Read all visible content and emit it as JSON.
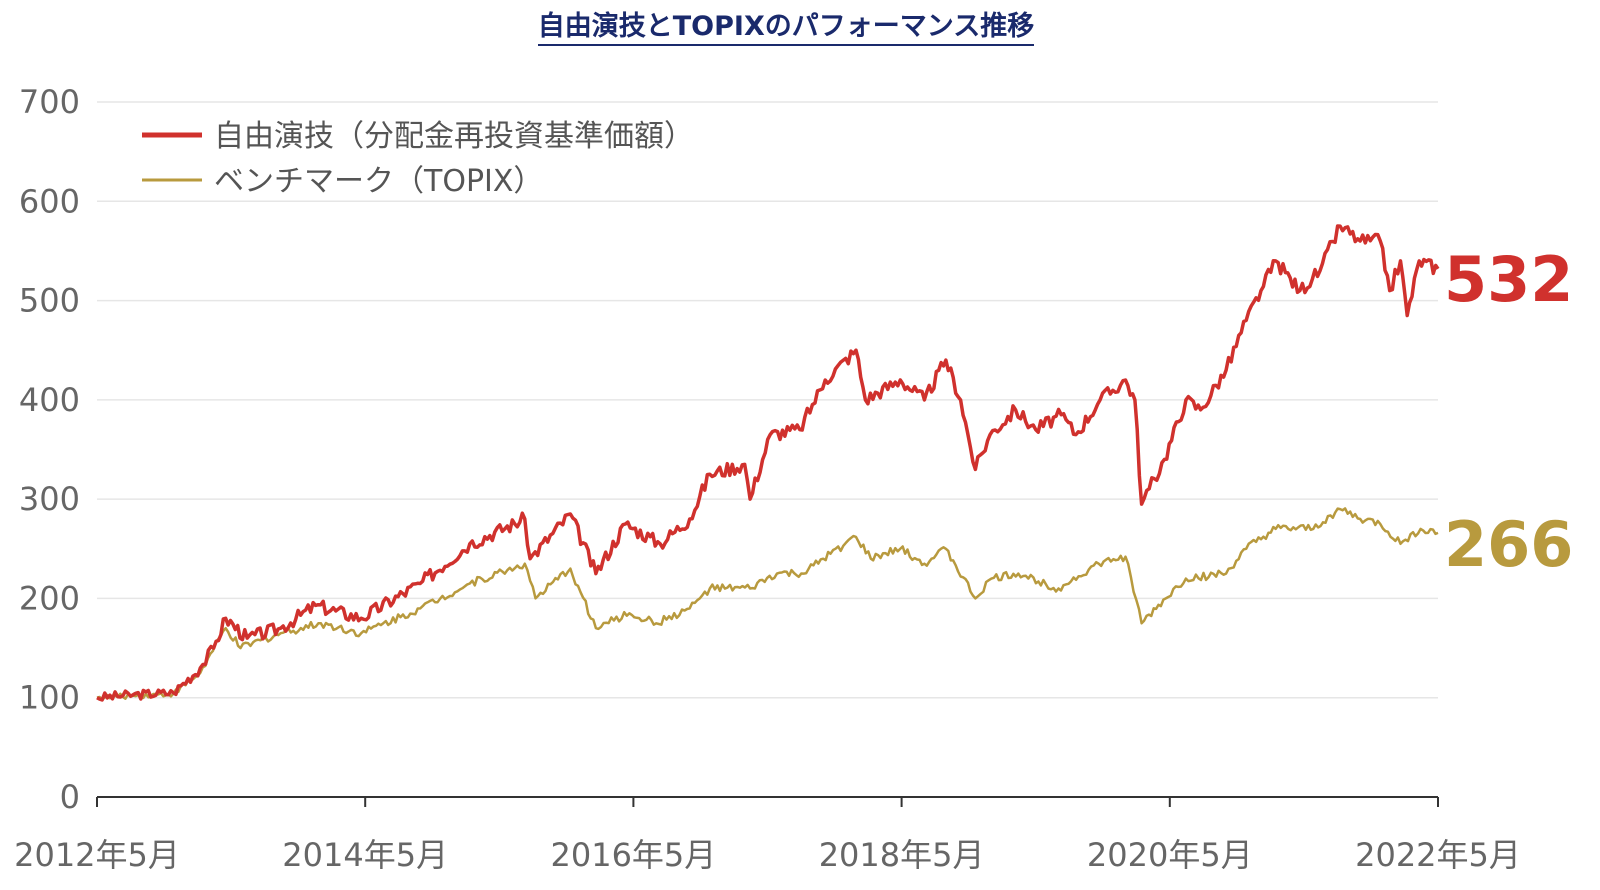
{
  "chart_data": {
    "type": "line",
    "title": "自由演技とTOPIXのパフォーマンス推移",
    "xlabel": "",
    "ylabel": "",
    "ylim": [
      0,
      700
    ],
    "xlim": [
      2012.33,
      2022.33
    ],
    "yticks": [
      "0",
      "100",
      "200",
      "300",
      "400",
      "500",
      "600",
      "700"
    ],
    "ytick_values": [
      0,
      100,
      200,
      300,
      400,
      500,
      600,
      700
    ],
    "xticks": [
      "2012年5月",
      "2014年5月",
      "2016年5月",
      "2018年5月",
      "2020年5月",
      "2022年5月"
    ],
    "xtick_values": [
      2012.33,
      2014.33,
      2016.33,
      2018.33,
      2020.33,
      2022.33
    ],
    "grid": true,
    "legend_position": "top-left",
    "series": [
      {
        "name": "自由演技（分配金再投資基準価額）",
        "color": "#d0312d",
        "end_label": "532",
        "x": [
          2012.33,
          2012.6,
          2012.9,
          2013.1,
          2013.2,
          2013.29,
          2013.45,
          2013.7,
          2013.96,
          2014.3,
          2014.74,
          2015.11,
          2015.52,
          2015.56,
          2015.86,
          2016.05,
          2016.27,
          2016.53,
          2016.75,
          2016.9,
          2017.16,
          2017.2,
          2017.35,
          2017.57,
          2017.76,
          2017.99,
          2018.06,
          2018.32,
          2018.5,
          2018.66,
          2018.77,
          2018.88,
          2018.99,
          2019.18,
          2019.33,
          2019.52,
          2019.63,
          2019.81,
          2020.0,
          2020.07,
          2020.12,
          2020.29,
          2020.45,
          2020.56,
          2020.75,
          2020.9,
          2021.01,
          2021.12,
          2021.3,
          2021.45,
          2021.6,
          2021.75,
          2021.9,
          2021.97,
          2022.05,
          2022.1,
          2022.19,
          2022.33
        ],
        "y": [
          100,
          103,
          105,
          130,
          150,
          180,
          160,
          170,
          193,
          180,
          215,
          255,
          280,
          240,
          285,
          225,
          275,
          255,
          280,
          325,
          335,
          300,
          365,
          370,
          420,
          450,
          400,
          420,
          400,
          440,
          400,
          330,
          365,
          390,
          370,
          385,
          365,
          400,
          420,
          400,
          295,
          340,
          400,
          390,
          430,
          480,
          510,
          540,
          510,
          530,
          575,
          560,
          560,
          510,
          540,
          485,
          540,
          532
        ]
      },
      {
        "name": "ベンチマーク（TOPIX）",
        "color": "#b89a3e",
        "end_label": "266",
        "x": [
          2012.33,
          2012.6,
          2012.9,
          2013.1,
          2013.29,
          2013.4,
          2013.7,
          2014.0,
          2014.3,
          2014.74,
          2015.11,
          2015.52,
          2015.6,
          2015.86,
          2016.05,
          2016.3,
          2016.5,
          2016.75,
          2016.9,
          2017.2,
          2017.4,
          2017.6,
          2017.8,
          2017.99,
          2018.1,
          2018.32,
          2018.5,
          2018.66,
          2018.88,
          2019.0,
          2019.2,
          2019.5,
          2019.8,
          2020.0,
          2020.12,
          2020.3,
          2020.45,
          2020.75,
          2020.9,
          2021.12,
          2021.4,
          2021.6,
          2021.75,
          2021.9,
          2022.05,
          2022.2,
          2022.33
        ],
        "y": [
          100,
          102,
          104,
          125,
          170,
          150,
          165,
          175,
          165,
          190,
          215,
          235,
          200,
          230,
          170,
          185,
          175,
          190,
          210,
          210,
          225,
          225,
          245,
          262,
          240,
          250,
          235,
          250,
          200,
          220,
          225,
          210,
          235,
          242,
          175,
          200,
          220,
          225,
          250,
          270,
          270,
          290,
          280,
          275,
          255,
          270,
          266
        ]
      }
    ]
  }
}
